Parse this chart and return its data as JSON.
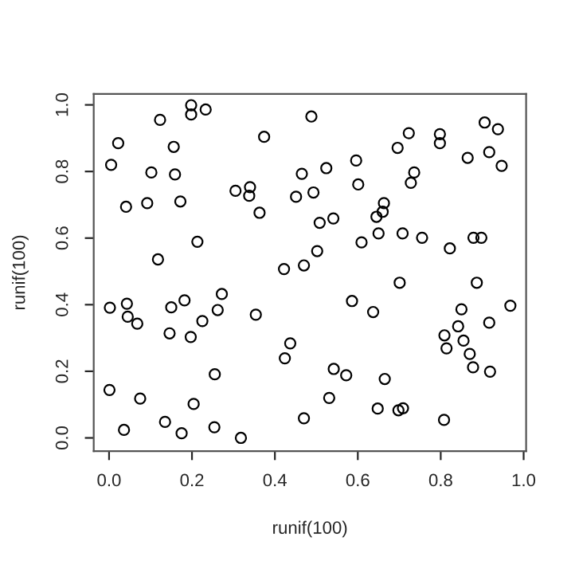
{
  "chart_data": {
    "type": "scatter",
    "xlabel": "runif(100)",
    "ylabel": "runif(100)",
    "x": [
      0.198,
      0.198,
      0.233,
      0.123,
      0.022,
      0.156,
      0.374,
      0.005,
      0.102,
      0.159,
      0.465,
      0.305,
      0.34,
      0.338,
      0.451,
      0.041,
      0.092,
      0.172,
      0.363,
      0.213,
      0.118,
      0.422,
      0.47,
      0.488,
      0.906,
      0.938,
      0.723,
      0.798,
      0.798,
      0.696,
      0.865,
      0.917,
      0.947,
      0.596,
      0.524,
      0.736,
      0.728,
      0.601,
      0.493,
      0.663,
      0.66,
      0.645,
      0.508,
      0.541,
      0.65,
      0.708,
      0.755,
      0.879,
      0.898,
      0.609,
      0.822,
      0.502,
      0.002,
      0.043,
      0.045,
      0.068,
      0.15,
      0.182,
      0.272,
      0.262,
      0.225,
      0.146,
      0.197,
      0.354,
      0.437,
      0.424,
      0.255,
      0.001,
      0.075,
      0.204,
      0.135,
      0.036,
      0.175,
      0.254,
      0.318,
      0.47,
      0.701,
      0.887,
      0.586,
      0.637,
      0.968,
      0.85,
      0.917,
      0.842,
      0.809,
      0.855,
      0.814,
      0.87,
      0.878,
      0.919,
      0.542,
      0.572,
      0.665,
      0.531,
      0.648,
      0.698,
      0.709,
      0.808
    ],
    "values": [
      0.999,
      0.971,
      0.986,
      0.955,
      0.885,
      0.874,
      0.904,
      0.82,
      0.797,
      0.791,
      0.793,
      0.742,
      0.753,
      0.727,
      0.724,
      0.694,
      0.705,
      0.71,
      0.676,
      0.589,
      0.536,
      0.507,
      0.518,
      0.965,
      0.947,
      0.927,
      0.915,
      0.912,
      0.885,
      0.871,
      0.841,
      0.858,
      0.817,
      0.833,
      0.81,
      0.797,
      0.766,
      0.761,
      0.737,
      0.705,
      0.679,
      0.664,
      0.646,
      0.659,
      0.614,
      0.614,
      0.601,
      0.601,
      0.601,
      0.587,
      0.569,
      0.561,
      0.391,
      0.403,
      0.364,
      0.343,
      0.392,
      0.413,
      0.432,
      0.384,
      0.351,
      0.314,
      0.303,
      0.37,
      0.284,
      0.239,
      0.191,
      0.144,
      0.118,
      0.102,
      0.048,
      0.024,
      0.014,
      0.032,
      0.0,
      0.059,
      0.466,
      0.466,
      0.411,
      0.378,
      0.397,
      0.386,
      0.346,
      0.335,
      0.308,
      0.292,
      0.269,
      0.252,
      0.212,
      0.199,
      0.207,
      0.188,
      0.177,
      0.12,
      0.088,
      0.083,
      0.089,
      0.054
    ],
    "color": "#000000",
    "marker": "circle",
    "grid": false,
    "xlim": [
      -0.037,
      1.006
    ],
    "ylim": [
      -0.04,
      1.033
    ],
    "xticks": [
      {
        "value": 0,
        "label": "0.0"
      },
      {
        "value": 0.2,
        "label": "0.2"
      },
      {
        "value": 0.4,
        "label": "0.4"
      },
      {
        "value": 0.6,
        "label": "0.6"
      },
      {
        "value": 0.8,
        "label": "0.8"
      },
      {
        "value": 1,
        "label": "1.0"
      }
    ],
    "yticks": [
      {
        "value": 0,
        "label": "0.0"
      },
      {
        "value": 0.2,
        "label": "0.2"
      },
      {
        "value": 0.4,
        "label": "0.4"
      },
      {
        "value": 0.6,
        "label": "0.6"
      },
      {
        "value": 0.8,
        "label": "0.8"
      },
      {
        "value": 1,
        "label": "1.0"
      }
    ]
  }
}
